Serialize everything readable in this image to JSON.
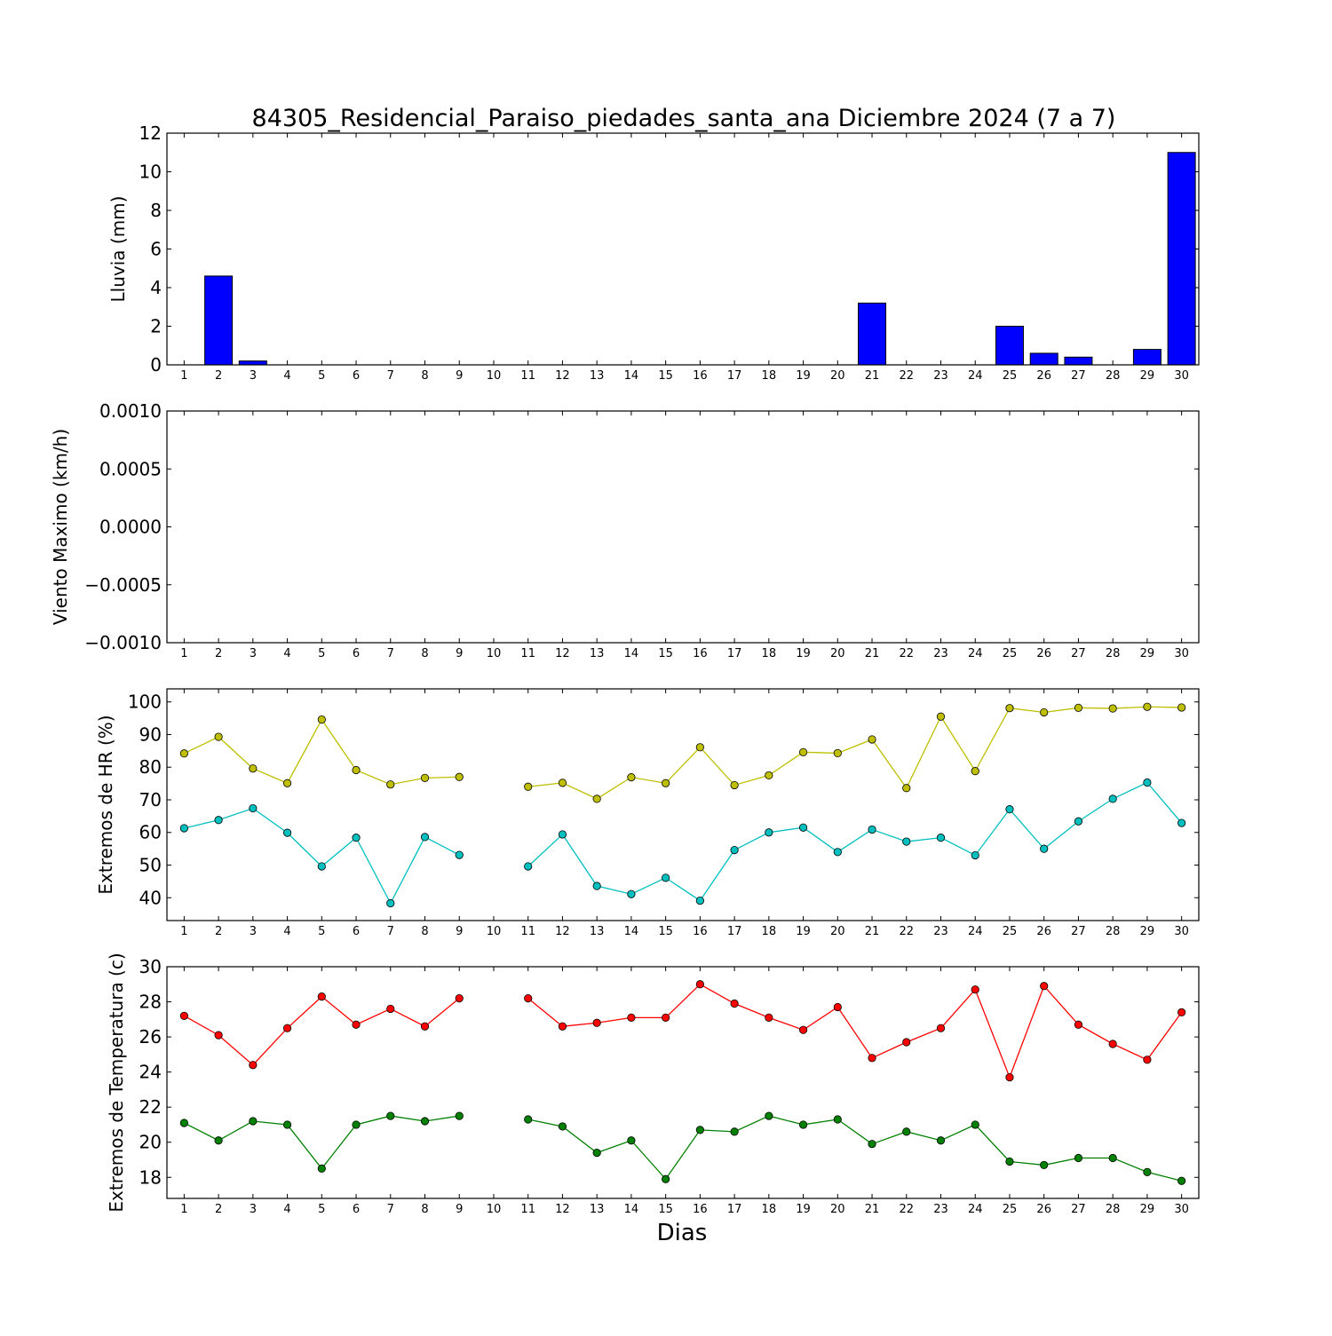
{
  "figure_title": "84305_Residencial_Paraiso_piedades_santa_ana Diciembre 2024  (7 a 7)",
  "xlabel": "Dias",
  "colors": {
    "rain": "#0000ff",
    "hr_max": "#bfbf00",
    "hr_min": "#00bfbf",
    "temp_max": "#ff0000",
    "temp_min": "#008000"
  },
  "chart_data": [
    {
      "type": "bar",
      "ylabel": "Lluvia (mm)",
      "ylim": [
        0,
        12
      ],
      "yticks": [
        "0",
        "2",
        "4",
        "6",
        "8",
        "10",
        "12"
      ],
      "categories": [
        1,
        2,
        3,
        4,
        5,
        6,
        7,
        8,
        9,
        10,
        11,
        12,
        13,
        14,
        15,
        16,
        17,
        18,
        19,
        20,
        21,
        22,
        23,
        24,
        25,
        26,
        27,
        28,
        29,
        30
      ],
      "values": [
        0,
        4.6,
        0.2,
        0,
        0,
        0,
        0,
        0,
        0,
        0,
        0,
        0,
        0,
        0,
        0,
        0,
        0,
        0,
        0,
        0,
        3.2,
        0,
        0,
        0,
        2.0,
        0.6,
        0.4,
        0,
        0.8,
        11.0
      ]
    },
    {
      "type": "line",
      "ylabel": "Viento Maximo (km/h)",
      "ylim": [
        -0.001,
        0.001
      ],
      "yticks": [
        "0.0010",
        "0.0005",
        "0.0000",
        "−0.0005",
        "−0.0010"
      ],
      "x": [
        1,
        2,
        3,
        4,
        5,
        6,
        7,
        8,
        9,
        10,
        11,
        12,
        13,
        14,
        15,
        16,
        17,
        18,
        19,
        20,
        21,
        22,
        23,
        24,
        25,
        26,
        27,
        28,
        29,
        30
      ],
      "series": []
    },
    {
      "type": "line",
      "ylabel": "Extremos de HR (%)",
      "ylim": [
        33,
        104
      ],
      "yticks": [
        "40",
        "50",
        "60",
        "70",
        "80",
        "90",
        "100"
      ],
      "x": [
        1,
        2,
        3,
        4,
        5,
        6,
        7,
        8,
        9,
        10,
        11,
        12,
        13,
        14,
        15,
        16,
        17,
        18,
        19,
        20,
        21,
        22,
        23,
        24,
        25,
        26,
        27,
        28,
        29,
        30
      ],
      "series": [
        {
          "values": [
            84.2,
            89.3,
            79.6,
            75.1,
            94.6,
            79.1,
            74.7,
            76.7,
            77.0,
            null,
            74.0,
            75.2,
            70.3,
            76.9,
            75.1,
            86.1,
            74.5,
            77.5,
            84.6,
            84.3,
            88.5,
            73.6,
            95.5,
            78.8,
            98.1,
            96.8,
            98.2,
            98.0,
            98.5,
            98.3
          ]
        },
        {
          "values": [
            61.3,
            63.8,
            67.4,
            59.9,
            49.6,
            58.4,
            38.3,
            58.6,
            53.1,
            null,
            49.6,
            59.4,
            43.6,
            41.1,
            46.1,
            39.1,
            54.6,
            60.0,
            61.5,
            54.0,
            60.9,
            57.2,
            58.4,
            53.0,
            67.1,
            55.0,
            63.4,
            70.3,
            75.3,
            62.9
          ]
        }
      ]
    },
    {
      "type": "line",
      "ylabel": "Extremos de Temperatura (c)",
      "ylim": [
        16.8,
        30
      ],
      "yticks": [
        "18",
        "20",
        "22",
        "24",
        "26",
        "28",
        "30"
      ],
      "x": [
        1,
        2,
        3,
        4,
        5,
        6,
        7,
        8,
        9,
        10,
        11,
        12,
        13,
        14,
        15,
        16,
        17,
        18,
        19,
        20,
        21,
        22,
        23,
        24,
        25,
        26,
        27,
        28,
        29,
        30
      ],
      "series": [
        {
          "values": [
            27.2,
            26.1,
            24.4,
            26.5,
            28.3,
            26.7,
            27.6,
            26.6,
            28.2,
            null,
            28.2,
            26.6,
            26.8,
            27.1,
            27.1,
            29.0,
            27.9,
            27.1,
            26.4,
            27.7,
            24.8,
            25.7,
            26.5,
            28.7,
            23.7,
            28.9,
            26.7,
            25.6,
            24.7,
            27.4
          ]
        },
        {
          "values": [
            21.1,
            20.1,
            21.2,
            21.0,
            18.5,
            21.0,
            21.5,
            21.2,
            21.5,
            null,
            21.3,
            20.9,
            19.4,
            20.1,
            17.9,
            20.7,
            20.6,
            21.5,
            21.0,
            21.3,
            19.9,
            20.6,
            20.1,
            21.0,
            18.9,
            18.7,
            19.1,
            19.1,
            18.3,
            17.8
          ]
        }
      ]
    }
  ]
}
